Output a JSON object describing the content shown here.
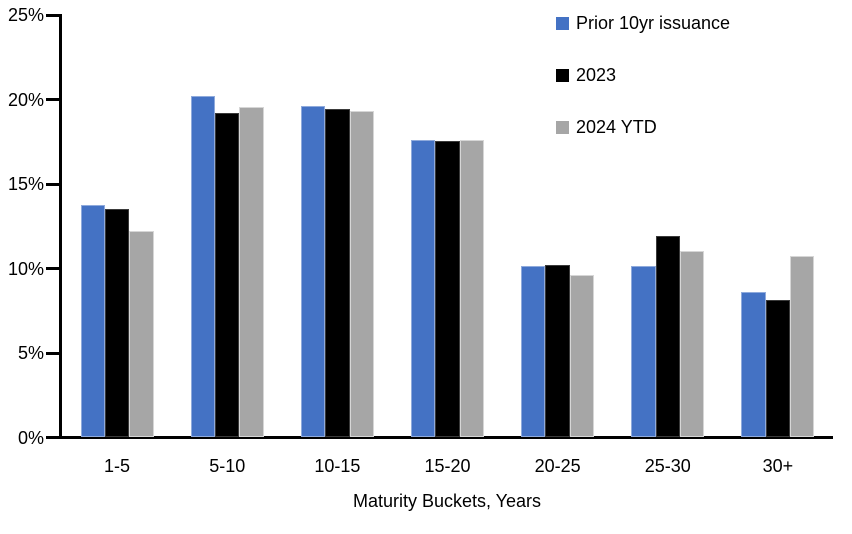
{
  "chart_data": {
    "type": "bar",
    "title": "",
    "xlabel": "Maturity Buckets, Years",
    "ylabel": "",
    "categories": [
      "1-5",
      "5-10",
      "10-15",
      "15-20",
      "20-25",
      "25-30",
      "30+"
    ],
    "series": [
      {
        "name": "Prior 10yr issuance",
        "color": "#4472C4",
        "border_color": "#8FAADC",
        "values": [
          13.7,
          20.2,
          19.6,
          17.6,
          10.1,
          10.1,
          8.6
        ]
      },
      {
        "name": "2023",
        "color": "#000000",
        "border_color": "#3A3A3A",
        "values": [
          13.5,
          19.2,
          19.4,
          17.5,
          10.2,
          11.9,
          8.1
        ]
      },
      {
        "name": "2024 YTD",
        "color": "#A6A6A6",
        "border_color": "#D6D6D6",
        "values": [
          12.2,
          19.5,
          19.3,
          17.6,
          9.6,
          11.0,
          10.7
        ]
      }
    ],
    "ylim": [
      0,
      25
    ],
    "yticks": [
      0,
      5,
      10,
      15,
      20,
      25
    ],
    "ytick_format": "percent",
    "grid": false,
    "legend_position": "top-right",
    "axis_color": "#000000",
    "text_color": "#000000"
  }
}
